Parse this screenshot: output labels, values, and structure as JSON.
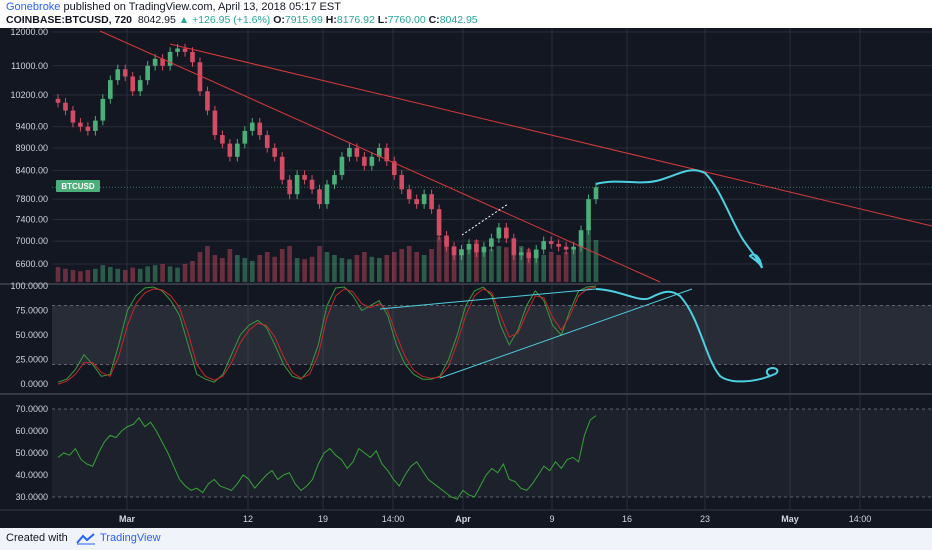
{
  "header": {
    "author": "Gonebroke",
    "published_text": "published on TradingView.com, April 13, 2018 05:17 EST",
    "symbol": "COINBASE:BTCUSD, 720",
    "last_price": "8042.95",
    "change": "▲ +126.95 (+1.6%)",
    "open_label": "O:",
    "open": "7915.99",
    "high_label": "H:",
    "high": "8176.92",
    "low_label": "L:",
    "low": "7760.00",
    "close_label": "C:",
    "close": "8042.95"
  },
  "footer": {
    "created_with": "Created with",
    "brand": "TradingView"
  },
  "colors": {
    "background": "#131722",
    "grid": "#2a2e39",
    "bull": "#4caf7a",
    "bear": "#d24d64",
    "trendline": "#d93a3a",
    "drawing": "#4dd0e1",
    "stoch_k": "#3c9a3c",
    "stoch_d": "#c62828",
    "rsi": "#36a336",
    "price_label": "#4caf7a"
  },
  "chart_data": [
    {
      "type": "candlestick",
      "panel": "price",
      "symbol_label": "BTCUSD",
      "current_price": 8042.95,
      "y_ticks": [
        "12000.00",
        "11000.00",
        "10200.00",
        "9400.00",
        "8900.00",
        "8400.00",
        "7800.00",
        "7400.00",
        "7000.00",
        "6600.00"
      ],
      "ylim": [
        6300,
        12000
      ],
      "x_ticks": [
        "Mar",
        "12",
        "19",
        "14:00",
        "Apr",
        "9",
        "16",
        "23",
        "May",
        "14:00"
      ],
      "closes": [
        10000,
        9800,
        9500,
        9400,
        9300,
        9550,
        10100,
        10600,
        10900,
        10700,
        10300,
        10600,
        11000,
        11200,
        11000,
        11400,
        11500,
        11400,
        11100,
        10300,
        9800,
        9200,
        9000,
        8700,
        9000,
        9300,
        9500,
        9200,
        8900,
        8700,
        8200,
        7900,
        8300,
        8200,
        8000,
        7700,
        8100,
        8300,
        8700,
        8900,
        8700,
        8500,
        8700,
        8900,
        8600,
        8300,
        8000,
        7800,
        7700,
        7900,
        7600,
        7100,
        6900,
        6750,
        6850,
        6950,
        6800,
        6900,
        7050,
        7250,
        7050,
        6750,
        6800,
        6700,
        6850,
        7000,
        6950,
        6900,
        6850,
        6900,
        7200,
        7800,
        8042.95
      ],
      "volume": [
        0.25,
        0.22,
        0.2,
        0.18,
        0.2,
        0.22,
        0.28,
        0.25,
        0.22,
        0.2,
        0.24,
        0.22,
        0.26,
        0.28,
        0.3,
        0.26,
        0.24,
        0.3,
        0.35,
        0.5,
        0.6,
        0.45,
        0.4,
        0.55,
        0.45,
        0.4,
        0.35,
        0.45,
        0.5,
        0.42,
        0.55,
        0.6,
        0.4,
        0.38,
        0.42,
        0.6,
        0.5,
        0.45,
        0.4,
        0.38,
        0.45,
        0.5,
        0.42,
        0.4,
        0.45,
        0.5,
        0.55,
        0.6,
        0.5,
        0.45,
        0.55,
        0.75,
        0.7,
        0.6,
        0.55,
        0.6,
        0.7,
        0.5,
        0.55,
        0.6,
        0.58,
        0.7,
        0.6,
        0.55,
        0.5,
        0.45,
        0.5,
        0.45,
        0.5,
        0.55,
        0.6,
        0.9,
        0.7
      ]
    },
    {
      "type": "line",
      "panel": "stochastic",
      "y_ticks": [
        "100.0000",
        "75.0000",
        "50.0000",
        "25.0000",
        "0.0000"
      ],
      "ylim": [
        -8,
        100
      ],
      "band": [
        20,
        80
      ],
      "series": [
        {
          "values": [
            2,
            5,
            15,
            30,
            20,
            8,
            10,
            40,
            75,
            90,
            98,
            99,
            95,
            85,
            70,
            40,
            10,
            5,
            2,
            10,
            30,
            50,
            60,
            65,
            58,
            40,
            20,
            8,
            5,
            15,
            40,
            80,
            98,
            99,
            90,
            75,
            80,
            85,
            70,
            40,
            20,
            10,
            5,
            5,
            8,
            25,
            50,
            80,
            95,
            99,
            90,
            60,
            40,
            55,
            80,
            95,
            85,
            60,
            50,
            75,
            95,
            99,
            100
          ]
        },
        {
          "values": [
            0,
            3,
            10,
            22,
            22,
            12,
            8,
            28,
            60,
            82,
            93,
            97,
            96,
            90,
            78,
            52,
            20,
            8,
            4,
            8,
            22,
            42,
            55,
            62,
            60,
            48,
            28,
            12,
            6,
            10,
            30,
            68,
            90,
            97,
            94,
            82,
            78,
            82,
            75,
            50,
            28,
            14,
            8,
            6,
            7,
            18,
            42,
            70,
            90,
            97,
            93,
            70,
            48,
            52,
            72,
            90,
            88,
            68,
            55,
            70,
            90,
            97,
            99
          ]
        }
      ]
    },
    {
      "type": "line",
      "panel": "rsi",
      "y_ticks": [
        "70.0000",
        "60.0000",
        "50.0000",
        "40.0000",
        "30.0000"
      ],
      "ylim": [
        25,
        75
      ],
      "band": [
        30,
        70
      ],
      "series": [
        {
          "values": [
            48,
            50,
            49,
            52,
            47,
            45,
            44,
            50,
            55,
            58,
            57,
            60,
            62,
            63,
            66,
            62,
            64,
            60,
            55,
            50,
            44,
            38,
            35,
            33,
            34,
            32,
            36,
            38,
            35,
            34,
            33,
            36,
            40,
            38,
            34,
            37,
            40,
            42,
            38,
            40,
            41,
            36,
            33,
            35,
            38,
            45,
            50,
            52,
            49,
            47,
            43,
            46,
            52,
            50,
            48,
            51,
            45,
            42,
            38,
            35,
            40,
            44,
            46,
            42,
            38,
            36,
            34,
            32,
            30,
            29,
            33,
            31,
            30,
            35,
            40,
            43,
            41,
            45,
            38,
            37,
            34,
            33,
            36,
            40,
            44,
            42,
            46,
            43,
            47,
            48,
            46,
            58,
            65,
            67
          ]
        }
      ]
    }
  ]
}
